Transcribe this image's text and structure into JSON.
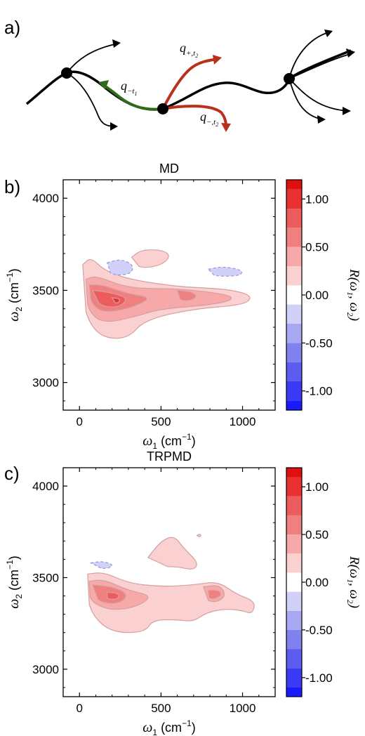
{
  "panels": {
    "a": {
      "label": "a)"
    },
    "b": {
      "label": "b)"
    },
    "c": {
      "label": "c)"
    }
  },
  "trajectory": {
    "label_minus_t1": "q",
    "label_minus_t1_sub": "−t",
    "label_minus_t1_subsub": "1",
    "label_plus_t2": "q",
    "label_plus_t2_sub": "+,t",
    "label_plus_t2_subsub": "2",
    "label_minus_t2": "q",
    "label_minus_t2_sub": "−,t",
    "label_minus_t2_subsub": "2",
    "colors": {
      "main": "#000000",
      "green": "#2e6b1a",
      "red": "#b8321a"
    }
  },
  "axes": {
    "xlabel_sym": "ω",
    "xlabel_sub": "1",
    "xlabel_unit": "(cm",
    "xlabel_exp": "−1",
    "xlabel_close": ")",
    "ylabel_sym": "ω",
    "ylabel_sub": "2",
    "ylabel_unit": "(cm",
    "ylabel_exp": "−1",
    "ylabel_close": ")"
  },
  "colorbar": {
    "label": "R(ω₁, ω₂)",
    "ticks": [
      "1.00",
      "0.50",
      "0.00",
      "-0.50",
      "-1.00"
    ],
    "levels": [
      -1.1,
      -0.9,
      -0.7,
      -0.5,
      -0.3,
      -0.1,
      0.1,
      0.3,
      0.5,
      0.7,
      0.9,
      1.1
    ],
    "colors": [
      "#1a1aff",
      "#3b3bf5",
      "#5c5cf0",
      "#8080ee",
      "#a8a8f2",
      "#d0d0f8",
      "#ffffff",
      "#fbd0d0",
      "#f7a8a8",
      "#f08080",
      "#ec5c5c",
      "#e83030",
      "#e01010"
    ]
  },
  "chart_data": [
    {
      "type": "heatmap",
      "title": "MD",
      "xlabel": "ω1 (cm−1)",
      "ylabel": "ω2 (cm−1)",
      "xlim": [
        -100,
        1200
      ],
      "ylim": [
        2850,
        4100
      ],
      "xticks": [
        0,
        500,
        1000
      ],
      "yticks": [
        3000,
        3500,
        4000
      ],
      "contours": [
        {
          "level": 0.1,
          "path": [
            [
              20,
              3640
            ],
            [
              70,
              3680
            ],
            [
              150,
              3610
            ],
            [
              300,
              3560
            ],
            [
              600,
              3520
            ],
            [
              850,
              3510
            ],
            [
              1000,
              3490
            ],
            [
              1060,
              3460
            ],
            [
              1000,
              3420
            ],
            [
              700,
              3400
            ],
            [
              400,
              3340
            ],
            [
              300,
              3240
            ],
            [
              150,
              3240
            ],
            [
              60,
              3320
            ],
            [
              20,
              3450
            ]
          ]
        },
        {
          "level": 0.1,
          "path": [
            [
              320,
              3680
            ],
            [
              380,
              3720
            ],
            [
              500,
              3720
            ],
            [
              560,
              3690
            ],
            [
              510,
              3640
            ],
            [
              400,
              3620
            ],
            [
              330,
              3640
            ]
          ]
        },
        {
          "level": 0.3,
          "path": [
            [
              40,
              3560
            ],
            [
              100,
              3580
            ],
            [
              300,
              3510
            ],
            [
              600,
              3510
            ],
            [
              900,
              3480
            ],
            [
              950,
              3450
            ],
            [
              800,
              3420
            ],
            [
              500,
              3400
            ],
            [
              350,
              3360
            ],
            [
              150,
              3320
            ],
            [
              60,
              3380
            ],
            [
              40,
              3480
            ]
          ]
        },
        {
          "level": 0.5,
          "path": [
            [
              60,
              3530
            ],
            [
              140,
              3530
            ],
            [
              300,
              3480
            ],
            [
              450,
              3460
            ],
            [
              300,
              3400
            ],
            [
              150,
              3380
            ],
            [
              80,
              3420
            ],
            [
              60,
              3480
            ]
          ]
        },
        {
          "level": 0.5,
          "path": [
            [
              600,
              3500
            ],
            [
              700,
              3490
            ],
            [
              720,
              3460
            ],
            [
              650,
              3440
            ],
            [
              590,
              3460
            ]
          ]
        },
        {
          "level": 0.7,
          "path": [
            [
              80,
              3500
            ],
            [
              180,
              3490
            ],
            [
              300,
              3460
            ],
            [
              250,
              3410
            ],
            [
              150,
              3410
            ],
            [
              90,
              3450
            ]
          ]
        },
        {
          "level": 0.9,
          "path": [
            [
              200,
              3460
            ],
            [
              250,
              3455
            ],
            [
              240,
              3430
            ],
            [
              200,
              3435
            ]
          ]
        },
        {
          "level": -0.1,
          "path": [
            [
              170,
              3650
            ],
            [
              250,
              3670
            ],
            [
              330,
              3640
            ],
            [
              320,
              3590
            ],
            [
              220,
              3580
            ],
            [
              160,
              3610
            ]
          ]
        },
        {
          "level": -0.1,
          "path": [
            [
              790,
              3615
            ],
            [
              880,
              3630
            ],
            [
              1000,
              3610
            ],
            [
              990,
              3580
            ],
            [
              860,
              3575
            ],
            [
              790,
              3590
            ]
          ]
        }
      ]
    },
    {
      "type": "heatmap",
      "title": "TRPMD",
      "xlabel": "ω1 (cm−1)",
      "ylabel": "ω2 (cm−1)",
      "xlim": [
        -100,
        1200
      ],
      "ylim": [
        2850,
        4100
      ],
      "xticks": [
        0,
        500,
        1000
      ],
      "yticks": [
        3000,
        3500,
        4000
      ],
      "contours": [
        {
          "level": 0.1,
          "path": [
            [
              50,
              3520
            ],
            [
              150,
              3530
            ],
            [
              300,
              3470
            ],
            [
              500,
              3450
            ],
            [
              700,
              3460
            ],
            [
              850,
              3480
            ],
            [
              960,
              3410
            ],
            [
              1080,
              3370
            ],
            [
              1060,
              3300
            ],
            [
              1000,
              3320
            ],
            [
              900,
              3330
            ],
            [
              780,
              3310
            ],
            [
              700,
              3260
            ],
            [
              600,
              3270
            ],
            [
              450,
              3270
            ],
            [
              400,
              3200
            ],
            [
              200,
              3200
            ],
            [
              80,
              3290
            ],
            [
              40,
              3420
            ]
          ]
        },
        {
          "level": 0.1,
          "path": [
            [
              420,
              3610
            ],
            [
              500,
              3700
            ],
            [
              580,
              3730
            ],
            [
              640,
              3660
            ],
            [
              730,
              3580
            ],
            [
              700,
              3540
            ],
            [
              600,
              3560
            ],
            [
              480,
              3560
            ]
          ]
        },
        {
          "level": 0.1,
          "path": [
            [
              720,
              3730
            ],
            [
              740,
              3740
            ],
            [
              745,
              3725
            ],
            [
              725,
              3720
            ]
          ]
        },
        {
          "level": 0.3,
          "path": [
            [
              60,
              3480
            ],
            [
              150,
              3490
            ],
            [
              300,
              3430
            ],
            [
              450,
              3400
            ],
            [
              350,
              3340
            ],
            [
              200,
              3320
            ],
            [
              80,
              3360
            ],
            [
              50,
              3430
            ]
          ]
        },
        {
          "level": 0.3,
          "path": [
            [
              760,
              3450
            ],
            [
              860,
              3460
            ],
            [
              900,
              3400
            ],
            [
              830,
              3360
            ],
            [
              750,
              3390
            ]
          ]
        },
        {
          "level": 0.5,
          "path": [
            [
              80,
              3460
            ],
            [
              200,
              3450
            ],
            [
              300,
              3410
            ],
            [
              250,
              3360
            ],
            [
              150,
              3360
            ],
            [
              80,
              3400
            ]
          ]
        },
        {
          "level": 0.5,
          "path": [
            [
              790,
              3430
            ],
            [
              860,
              3430
            ],
            [
              870,
              3400
            ],
            [
              810,
              3380
            ],
            [
              780,
              3400
            ]
          ]
        },
        {
          "level": 0.7,
          "path": [
            [
              170,
              3420
            ],
            [
              240,
              3415
            ],
            [
              240,
              3385
            ],
            [
              180,
              3380
            ],
            [
              160,
              3400
            ]
          ]
        },
        {
          "level": -0.1,
          "path": [
            [
              70,
              3580
            ],
            [
              140,
              3590
            ],
            [
              210,
              3570
            ],
            [
              180,
              3550
            ],
            [
              90,
              3550
            ]
          ]
        }
      ]
    }
  ]
}
